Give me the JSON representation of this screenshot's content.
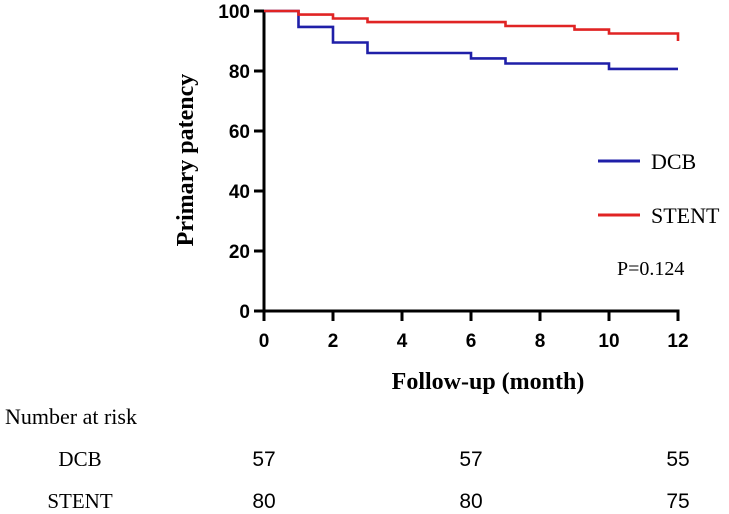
{
  "chart_data": {
    "type": "line",
    "subtype": "kaplan-meier-step",
    "title": "",
    "xlabel": "Follow-up (month)",
    "ylabel": "Primary patency",
    "xlim": [
      0,
      12
    ],
    "ylim": [
      0,
      100
    ],
    "x_ticks": [
      "0",
      "2",
      "4",
      "6",
      "8",
      "10",
      "12"
    ],
    "y_ticks": [
      "0",
      "20",
      "40",
      "60",
      "80",
      "100"
    ],
    "grid": false,
    "legend_position": "right",
    "annotation": "P=0.124",
    "series": [
      {
        "name": "DCB",
        "color": "#1f1fa8",
        "steps": [
          [
            0,
            100
          ],
          [
            1,
            94.7
          ],
          [
            2,
            89.5
          ],
          [
            3,
            86
          ],
          [
            6,
            84.2
          ],
          [
            7,
            82.5
          ],
          [
            10,
            80.7
          ],
          [
            12,
            80.7
          ]
        ]
      },
      {
        "name": "STENT",
        "color": "#e02424",
        "steps": [
          [
            0,
            100
          ],
          [
            1,
            98.8
          ],
          [
            2,
            97.5
          ],
          [
            3,
            96.3
          ],
          [
            7,
            95
          ],
          [
            9,
            93.8
          ],
          [
            10,
            92.5
          ],
          [
            12,
            90
          ]
        ]
      }
    ],
    "risk_table": {
      "title": "Number at risk",
      "time_points": [
        0,
        6,
        12
      ],
      "rows": [
        {
          "label": "DCB",
          "values": [
            "57",
            "57",
            "55"
          ]
        },
        {
          "label": "STENT",
          "values": [
            "80",
            "80",
            "75"
          ]
        }
      ]
    }
  }
}
